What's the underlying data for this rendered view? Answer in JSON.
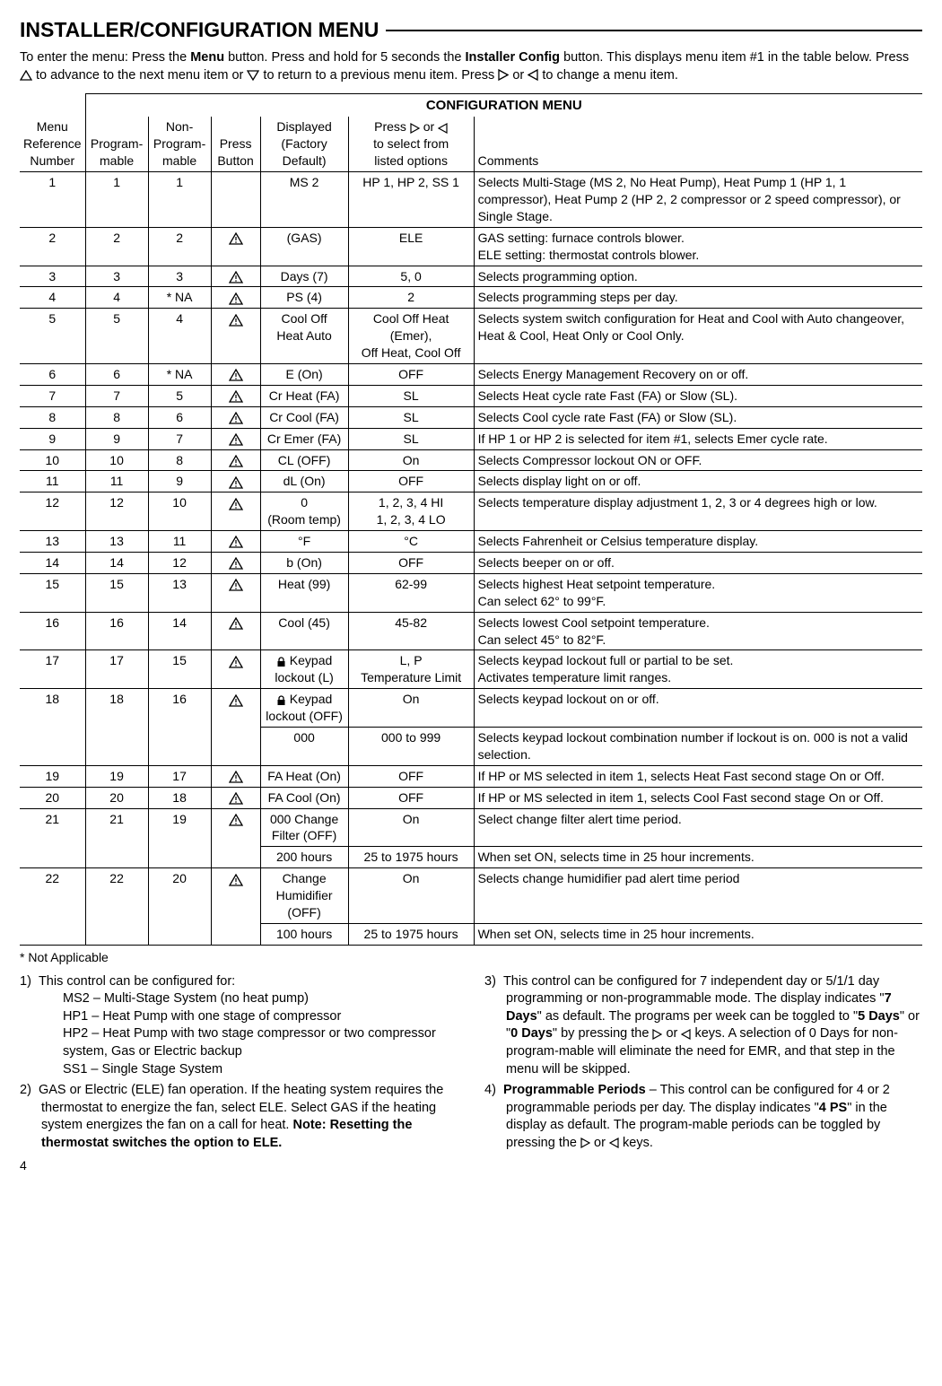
{
  "title": "INSTALLER/CONFIGURATION MENU",
  "intro_parts": {
    "p1": "To enter the menu: Press the ",
    "menu": "Menu",
    "p2": " button. Press and hold for 5 seconds the ",
    "installer": "Installer Config",
    "p3": " button. This displays menu item #1 in the table below. Press ",
    "p4": " to advance to the next menu item or ",
    "p5": " to return to a previous menu item. Press ",
    "p6": " or ",
    "p7": " to change a menu item."
  },
  "table": {
    "caption": "CONFIGURATION MENU",
    "headers": {
      "menu_ref": [
        "Menu",
        "Reference",
        "Number"
      ],
      "prog": [
        "Program-",
        "mable"
      ],
      "nonprog": [
        "Non-",
        "Program-",
        "mable"
      ],
      "press": [
        "Press",
        "Button"
      ],
      "displayed": [
        "Displayed",
        "(Factory",
        "Default)"
      ],
      "select": [
        "Press ",
        " or ",
        "to select from",
        "listed options"
      ],
      "comments": "Comments"
    },
    "rows": [
      {
        "n": "1",
        "p": "1",
        "np": "1",
        "pb": "",
        "d": "MS 2",
        "s": "HP 1, HP 2, SS 1",
        "c": "Selects Multi-Stage (MS 2, No Heat Pump), Heat Pump 1 (HP 1, 1 compressor), Heat Pump 2 (HP 2, 2 compressor or 2 speed compressor), or Single Stage."
      },
      {
        "n": "2",
        "p": "2",
        "np": "2",
        "pb": "w",
        "d": "(GAS)",
        "s": "ELE",
        "c": "GAS setting: furnace controls blower.\nELE setting: thermostat controls blower."
      },
      {
        "n": "3",
        "p": "3",
        "np": "3",
        "pb": "w",
        "d": "Days (7)",
        "s": "5, 0",
        "c": "Selects programming option."
      },
      {
        "n": "4",
        "p": "4",
        "np": "* NA",
        "pb": "w",
        "d": "PS (4)",
        "s": "2",
        "c": "Selects programming steps per day."
      },
      {
        "n": "5",
        "p": "5",
        "np": "4",
        "pb": "w",
        "d": "Cool Off\nHeat Auto",
        "s": "Cool Off  Heat (Emer),\nOff  Heat, Cool Off",
        "c": "Selects system switch configuration for Heat and Cool with Auto changeover, Heat & Cool, Heat Only or Cool Only."
      },
      {
        "n": "6",
        "p": "6",
        "np": "* NA",
        "pb": "w",
        "d": "E (On)",
        "s": "OFF",
        "c": "Selects Energy Management Recovery on or off."
      },
      {
        "n": "7",
        "p": "7",
        "np": "5",
        "pb": "w",
        "d": "Cr Heat (FA)",
        "s": "SL",
        "c": "Selects Heat cycle rate Fast (FA) or Slow (SL)."
      },
      {
        "n": "8",
        "p": "8",
        "np": "6",
        "pb": "w",
        "d": "Cr Cool (FA)",
        "s": "SL",
        "c": "Selects Cool cycle rate Fast (FA) or Slow (SL)."
      },
      {
        "n": "9",
        "p": "9",
        "np": "7",
        "pb": "w",
        "d": "Cr Emer (FA)",
        "s": "SL",
        "c": "If HP 1 or HP 2 is selected for item #1, selects Emer cycle rate."
      },
      {
        "n": "10",
        "p": "10",
        "np": "8",
        "pb": "w",
        "d": "CL (OFF)",
        "s": "On",
        "c": "Selects Compressor lockout ON or OFF."
      },
      {
        "n": "11",
        "p": "11",
        "np": "9",
        "pb": "w",
        "d": "dL (On)",
        "s": "OFF",
        "c": "Selects display light on or off."
      },
      {
        "n": "12",
        "p": "12",
        "np": "10",
        "pb": "w",
        "d": "0\n(Room temp)",
        "s": "1, 2, 3, 4 HI\n1, 2, 3, 4 LO",
        "c": "Selects temperature display adjustment 1, 2, 3 or 4 degrees high or low."
      },
      {
        "n": "13",
        "p": "13",
        "np": "11",
        "pb": "w",
        "d": "°F",
        "s": "°C",
        "c": "Selects Fahrenheit or Celsius temperature display."
      },
      {
        "n": "14",
        "p": "14",
        "np": "12",
        "pb": "w",
        "d": "b (On)",
        "s": "OFF",
        "c": "Selects beeper on or off."
      },
      {
        "n": "15",
        "p": "15",
        "np": "13",
        "pb": "w",
        "d": "Heat (99)",
        "s": "62-99",
        "c": "Selects highest Heat setpoint temperature.\nCan select 62° to 99°F."
      },
      {
        "n": "16",
        "p": "16",
        "np": "14",
        "pb": "w",
        "d": "Cool (45)",
        "s": "45-82",
        "c": "Selects lowest Cool setpoint temperature.\nCan select 45° to 82°F."
      },
      {
        "n": "17",
        "p": "17",
        "np": "15",
        "pb": "w",
        "d": "LOCK Keypad\nlockout (L)",
        "s": "L, P\nTemperature Limit",
        "c": "Selects keypad lockout full or partial to be set.\nActivates temperature limit ranges."
      },
      {
        "n": "18",
        "p": "18",
        "np": "16",
        "pb": "w",
        "d": "LOCK Keypad\nlockout (OFF)",
        "s": "On",
        "c": "Selects keypad lockout on or off.",
        "sub": {
          "d": "000",
          "s": "000 to 999",
          "c": "Selects keypad lockout combination number if lockout is on. 000 is not a valid selection."
        }
      },
      {
        "n": "19",
        "p": "19",
        "np": "17",
        "pb": "w",
        "d": "FA Heat (On)",
        "s": "OFF",
        "c": "If HP or MS selected in item 1, selects Heat Fast second stage On or Off."
      },
      {
        "n": "20",
        "p": "20",
        "np": "18",
        "pb": "w",
        "d": "FA Cool (On)",
        "s": "OFF",
        "c": "If HP or MS selected in item 1, selects Cool Fast second stage On or Off."
      },
      {
        "n": "21",
        "p": "21",
        "np": "19",
        "pb": "w",
        "d": "000 Change\nFilter (OFF)",
        "s": "On",
        "c": "Select change filter alert time period.",
        "sub": {
          "d": "200 hours",
          "s": "25 to 1975 hours",
          "c": "When set ON, selects time in 25 hour increments."
        }
      },
      {
        "n": "22",
        "p": "22",
        "np": "20",
        "pb": "w",
        "d": "Change\nHumidifier\n(OFF)",
        "s": "On",
        "c": "Selects change humidifier pad alert time period",
        "sub": {
          "d": "100 hours",
          "s": "25 to 1975 hours",
          "c": "When set ON, selects time in 25 hour increments."
        }
      }
    ]
  },
  "footnote": "* Not Applicable",
  "notes_left": [
    {
      "num": "1)",
      "text": "This control can be configured for:",
      "subs": [
        "MS2 – Multi-Stage System (no heat pump)",
        "HP1 – Heat Pump with one stage of compressor",
        "HP2 – Heat Pump with two stage compressor or two compressor system, Gas or Electric backup",
        "SS1 – Single Stage System"
      ]
    },
    {
      "num": "2)",
      "text_parts": [
        "GAS or Electric (ELE) fan operation. If the heating system requires the thermostat to energize the fan, select ELE. Select GAS if the heating system energizes the fan on a call for heat. ",
        "Note: Resetting the thermostat switches the option to ELE."
      ]
    }
  ],
  "notes_right": [
    {
      "num": "3)",
      "text_parts": [
        "This control can be configured for 7 independent day or 5/1/1 day programming or non-programmable mode. The display indicates \"",
        "7 Days",
        "\" as default. The programs per week can be toggled to \"",
        "5 Days",
        "\" or \"",
        "0 Days",
        "\" by pressing the ",
        " or ",
        " keys. A selection of 0 Days for non-program-mable will eliminate the need for EMR, and that step in the menu will be skipped."
      ]
    },
    {
      "num": "4)",
      "text_parts": [
        "",
        "Programmable Periods",
        " – This control can be configured for 4 or 2 programmable periods per day. The display indicates \"",
        "4 PS",
        "\" in the display as default. The program-mable periods can be toggled by pressing the ",
        " or ",
        " keys."
      ]
    }
  ],
  "page_num": "4",
  "colors": {
    "text": "#000000",
    "bg": "#ffffff",
    "rule": "#000000"
  },
  "icons": {
    "up": "up-triangle-outline",
    "down": "down-triangle-outline",
    "right": "right-triangle-outline",
    "left": "left-triangle-outline",
    "warn": "triangle-exclaim",
    "lock": "padlock"
  }
}
